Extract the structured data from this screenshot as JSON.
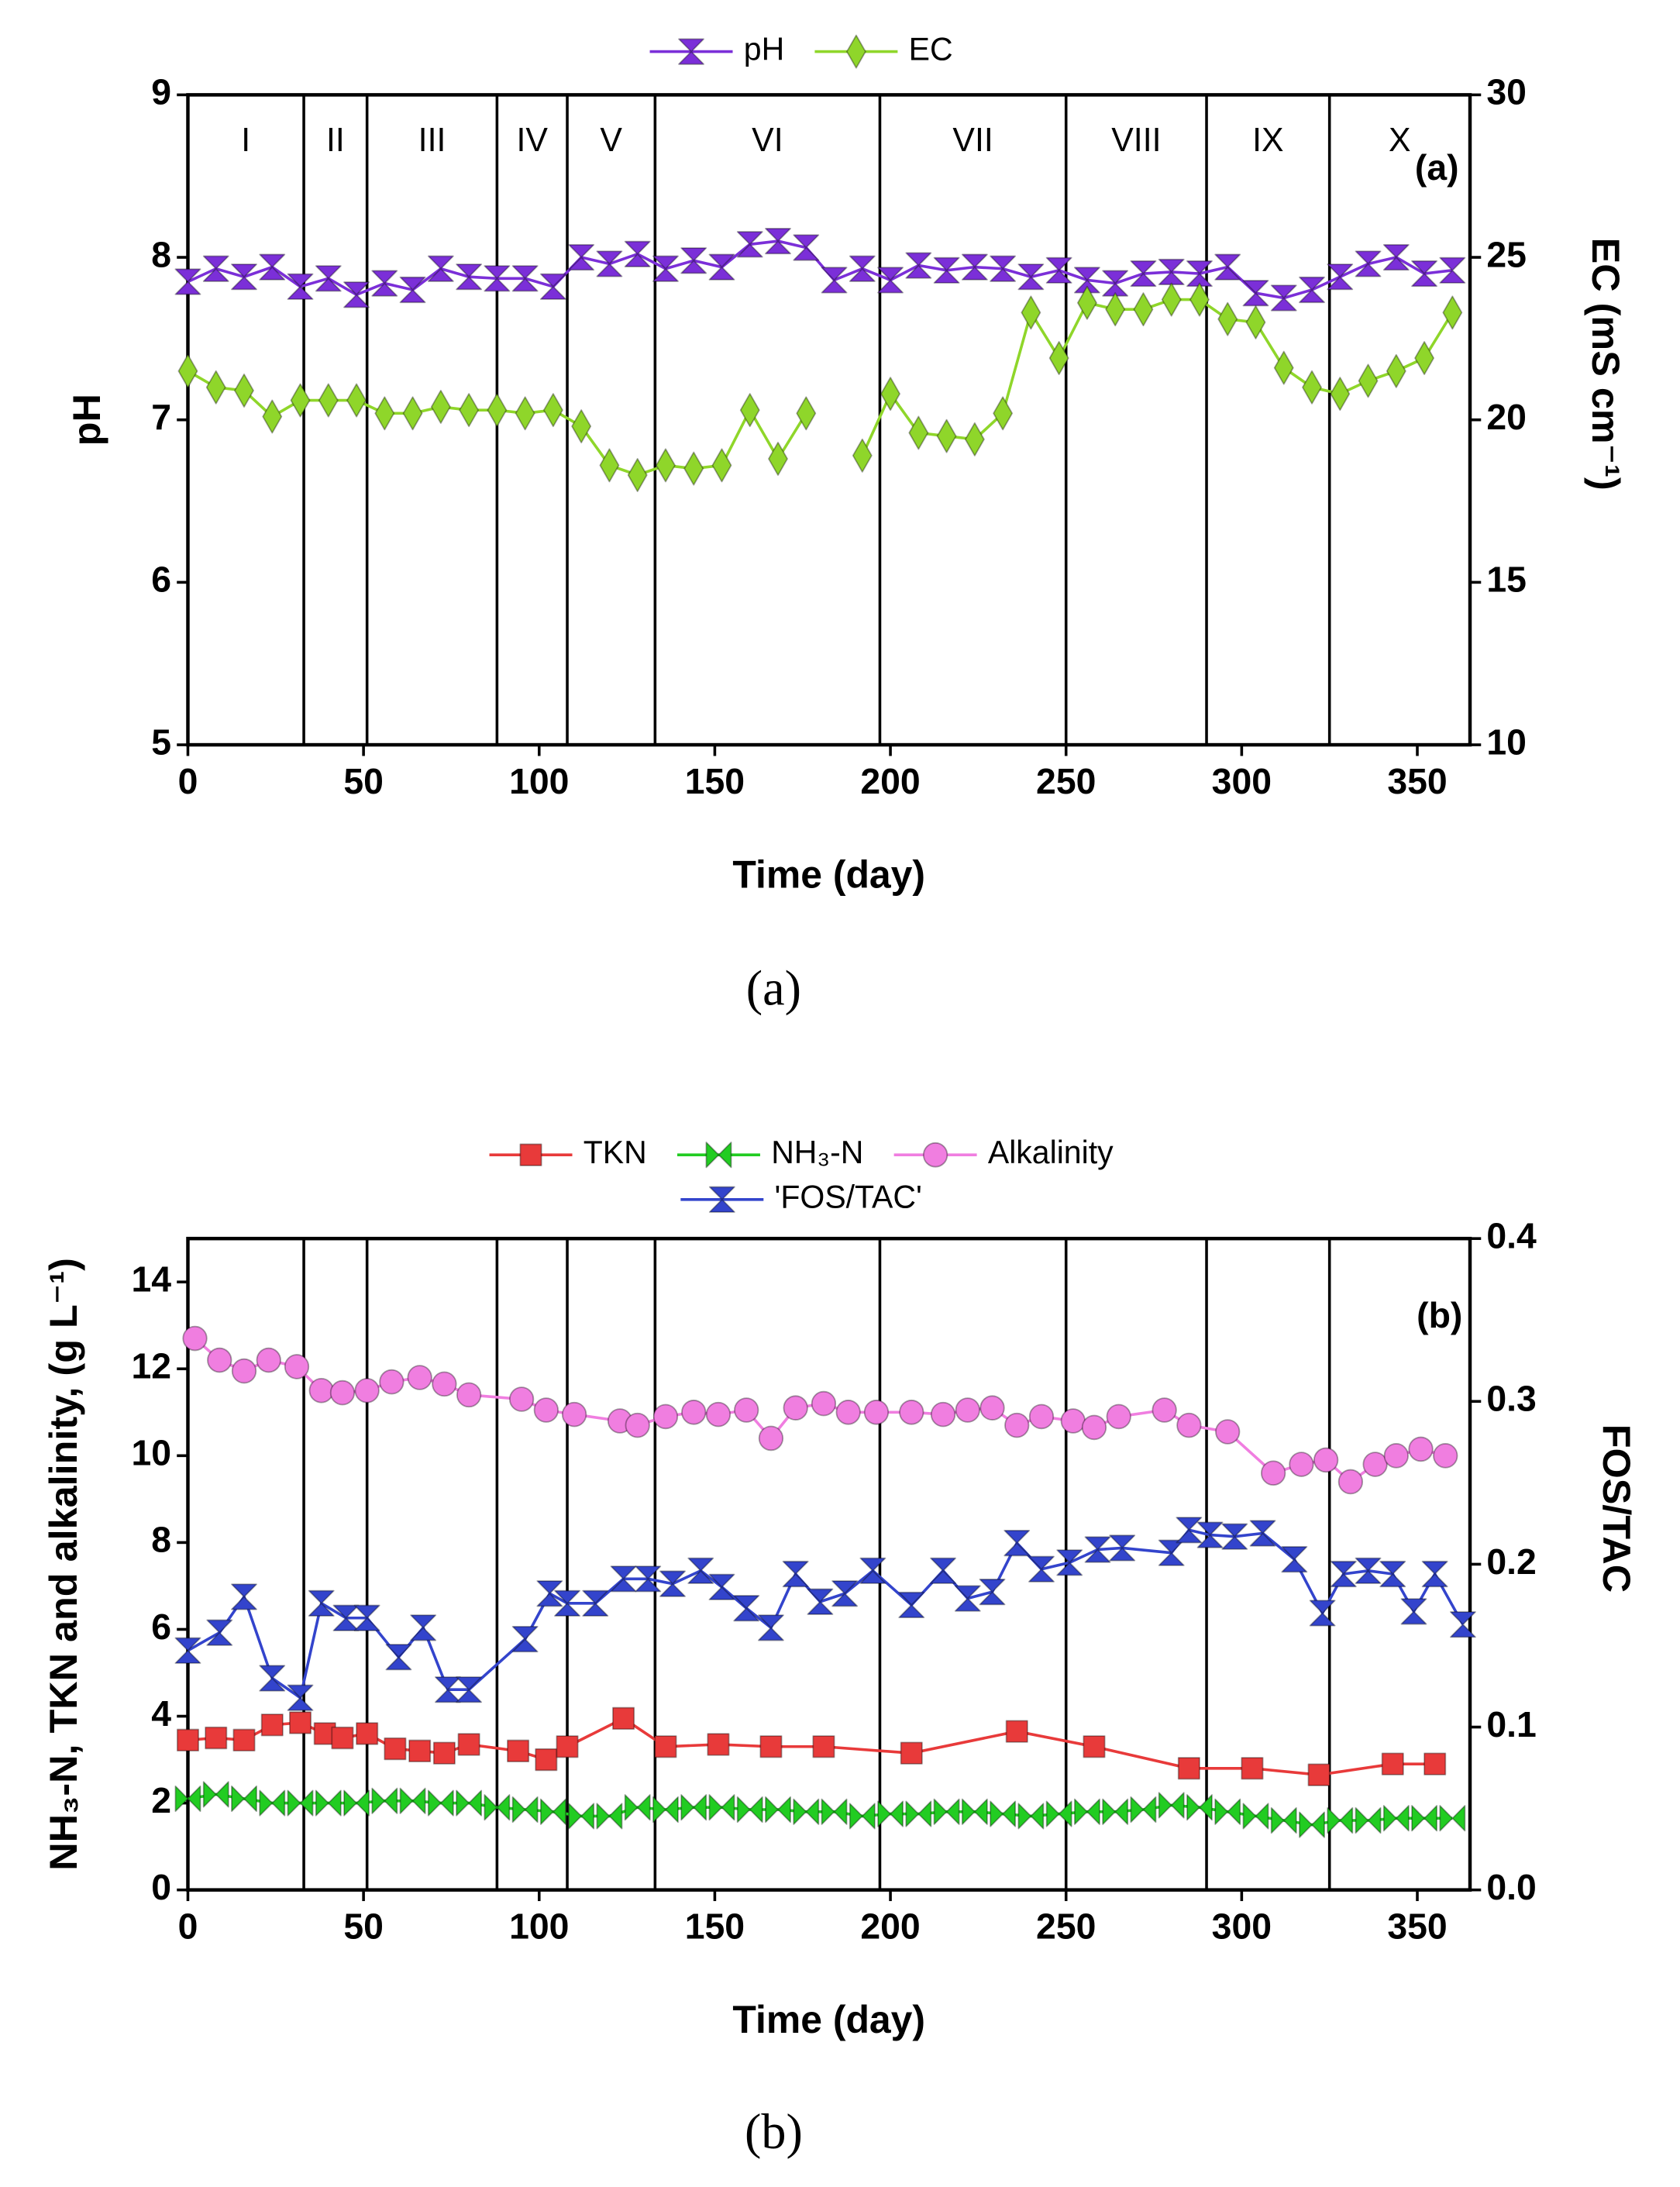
{
  "chart_data": [
    {
      "type": "line",
      "xlabel": "Time (day)",
      "ylabel": "pH",
      "y2label": "EC (mS cm⁻¹)",
      "annotation": "(a)",
      "caption": "(a)",
      "xlim": [
        0,
        365
      ],
      "xticks": [
        0,
        50,
        100,
        150,
        200,
        250,
        300,
        350
      ],
      "ylim": [
        5,
        9
      ],
      "yticks": [
        5,
        6,
        7,
        8,
        9
      ],
      "y2lim": [
        10,
        30
      ],
      "y2ticks": [
        10,
        15,
        20,
        25,
        30
      ],
      "phase_boundaries": [
        33,
        51,
        88,
        108,
        133,
        197,
        250,
        290,
        325
      ],
      "phase_labels": [
        "I",
        "II",
        "III",
        "IV",
        "V",
        "VI",
        "VII",
        "VIII",
        "IX",
        "X"
      ],
      "x": [
        0,
        8,
        16,
        24,
        32,
        40,
        48,
        56,
        64,
        72,
        80,
        88,
        96,
        104,
        112,
        120,
        128,
        136,
        144,
        152,
        160,
        168,
        176,
        184,
        192,
        200,
        208,
        216,
        224,
        232,
        240,
        248,
        256,
        264,
        272,
        280,
        288,
        296,
        304,
        312,
        320,
        328,
        336,
        344,
        352,
        360
      ],
      "series": [
        {
          "name": "pH",
          "color": "#7b2fd8",
          "marker": "hourglass",
          "values": [
            7.85,
            7.93,
            7.88,
            7.94,
            7.82,
            7.87,
            7.77,
            7.84,
            7.8,
            7.93,
            7.88,
            7.87,
            7.87,
            7.82,
            8.0,
            7.96,
            8.02,
            7.93,
            7.98,
            7.94,
            8.08,
            8.1,
            8.06,
            7.86,
            7.93,
            7.86,
            7.95,
            7.92,
            7.94,
            7.93,
            7.88,
            7.92,
            7.86,
            7.84,
            7.9,
            7.91,
            7.9,
            7.94,
            7.78,
            7.75,
            7.8,
            7.88,
            7.96,
            8.0,
            7.9,
            7.92
          ]
        },
        {
          "name": "EC",
          "color": "#8fd62a",
          "marker": "diamond",
          "axis": "y2",
          "values": [
            21.5,
            21.0,
            20.9,
            20.1,
            20.6,
            20.6,
            20.6,
            20.2,
            20.2,
            20.4,
            20.3,
            20.3,
            20.2,
            20.3,
            19.8,
            18.6,
            18.3,
            18.6,
            18.5,
            18.6,
            20.3,
            18.8,
            20.2,
            null,
            18.9,
            20.8,
            19.6,
            19.5,
            19.4,
            20.2,
            23.3,
            21.9,
            23.6,
            23.4,
            23.4,
            23.7,
            23.7,
            23.1,
            23.0,
            21.6,
            21.0,
            20.8,
            21.2,
            21.5,
            21.9,
            23.3
          ]
        }
      ]
    },
    {
      "type": "line",
      "xlabel": "Time (day)",
      "ylabel": "NH₃-N, TKN and alkalinity, (g L⁻¹)",
      "y2label": "FOS/TAC",
      "annotation": "(b)",
      "caption": "(b)",
      "xlim": [
        0,
        365
      ],
      "xticks": [
        0,
        50,
        100,
        150,
        200,
        250,
        300,
        350
      ],
      "ylim": [
        0,
        15
      ],
      "yticks": [
        0,
        2,
        4,
        6,
        8,
        10,
        12,
        14
      ],
      "y2lim": [
        0,
        0.4
      ],
      "y2ticks": [
        {
          "value": 0,
          "label": "0.0"
        },
        0.1,
        0.2,
        0.3,
        0.4
      ],
      "phase_boundaries": [
        33,
        51,
        88,
        108,
        133,
        197,
        250,
        290,
        325
      ],
      "series": [
        {
          "name": "TKN",
          "color": "#e83a3a",
          "marker": "square",
          "x": [
            0,
            8,
            16,
            24,
            32,
            39,
            44,
            51,
            59,
            66,
            73,
            80,
            94,
            102,
            108,
            124,
            136,
            151,
            166,
            181,
            206,
            236,
            258,
            285,
            303,
            322,
            343,
            355
          ],
          "values": [
            3.45,
            3.5,
            3.45,
            3.8,
            3.85,
            3.6,
            3.5,
            3.6,
            3.25,
            3.2,
            3.15,
            3.35,
            3.2,
            3.0,
            3.3,
            3.95,
            3.3,
            3.35,
            3.3,
            3.3,
            3.15,
            3.65,
            3.3,
            2.8,
            2.8,
            2.65,
            2.9,
            2.9
          ]
        },
        {
          "name": "NH₃-N",
          "color": "#22cc22",
          "marker": "bowtie",
          "x": [
            0,
            8,
            16,
            24,
            32,
            40,
            48,
            56,
            64,
            72,
            80,
            88,
            96,
            104,
            112,
            120,
            128,
            136,
            144,
            152,
            160,
            168,
            176,
            184,
            192,
            200,
            208,
            216,
            224,
            232,
            240,
            248,
            256,
            264,
            272,
            280,
            288,
            296,
            304,
            312,
            320,
            328,
            336,
            344,
            352,
            360
          ],
          "values": [
            2.1,
            2.2,
            2.1,
            2.0,
            2.0,
            2.0,
            2.0,
            2.05,
            2.05,
            2.0,
            2.0,
            1.9,
            1.85,
            1.8,
            1.7,
            1.7,
            1.9,
            1.85,
            1.9,
            1.9,
            1.85,
            1.85,
            1.8,
            1.8,
            1.7,
            1.75,
            1.75,
            1.8,
            1.8,
            1.75,
            1.7,
            1.75,
            1.8,
            1.8,
            1.85,
            1.95,
            1.9,
            1.8,
            1.7,
            1.6,
            1.5,
            1.6,
            1.6,
            1.65,
            1.65,
            1.65
          ]
        },
        {
          "name": "Alkalinity",
          "color": "#f07ee0",
          "marker": "circle",
          "x": [
            2,
            9,
            16,
            23,
            31,
            38,
            44,
            51,
            58,
            66,
            73,
            80,
            95,
            102,
            110,
            123,
            128,
            136,
            144,
            151,
            159,
            166,
            173,
            181,
            188,
            196,
            206,
            215,
            222,
            229,
            236,
            243,
            252,
            258,
            265,
            278,
            285,
            296,
            309,
            317,
            324,
            331,
            338,
            344,
            351,
            358
          ],
          "values": [
            12.7,
            12.2,
            11.95,
            12.2,
            12.05,
            11.5,
            11.45,
            11.5,
            11.7,
            11.8,
            11.65,
            11.4,
            11.3,
            11.05,
            10.95,
            10.8,
            10.7,
            10.9,
            11.0,
            10.95,
            11.05,
            10.4,
            11.1,
            11.2,
            11.0,
            11.0,
            11.0,
            10.95,
            11.05,
            11.1,
            10.7,
            10.9,
            10.8,
            10.65,
            10.9,
            11.05,
            10.7,
            10.55,
            9.6,
            9.8,
            9.9,
            9.4,
            9.8,
            10.0,
            10.15,
            10.0
          ]
        },
        {
          "name": "'FOS/TAC'",
          "color": "#3344cc",
          "marker": "hourglass",
          "axis": "y2",
          "x": [
            0,
            9,
            16,
            24,
            32,
            38,
            45,
            51,
            60,
            67,
            74,
            80,
            96,
            103,
            108,
            116,
            124,
            131,
            138,
            146,
            152,
            159,
            166,
            173,
            180,
            187,
            195,
            206,
            215,
            222,
            229,
            236,
            243,
            251,
            259,
            266,
            280,
            285,
            291,
            298,
            306,
            315,
            323,
            329,
            336,
            343,
            349,
            355,
            363
          ],
          "values": [
            0.147,
            0.158,
            0.18,
            0.13,
            0.118,
            0.176,
            0.167,
            0.167,
            0.143,
            0.161,
            0.123,
            0.123,
            0.154,
            0.182,
            0.176,
            0.176,
            0.191,
            0.191,
            0.188,
            0.196,
            0.186,
            0.173,
            0.161,
            0.194,
            0.177,
            0.182,
            0.196,
            0.175,
            0.196,
            0.179,
            0.183,
            0.213,
            0.197,
            0.201,
            0.209,
            0.21,
            0.207,
            0.221,
            0.218,
            0.217,
            0.219,
            0.203,
            0.17,
            0.194,
            0.196,
            0.194,
            0.171,
            0.194,
            0.163
          ]
        }
      ]
    }
  ]
}
